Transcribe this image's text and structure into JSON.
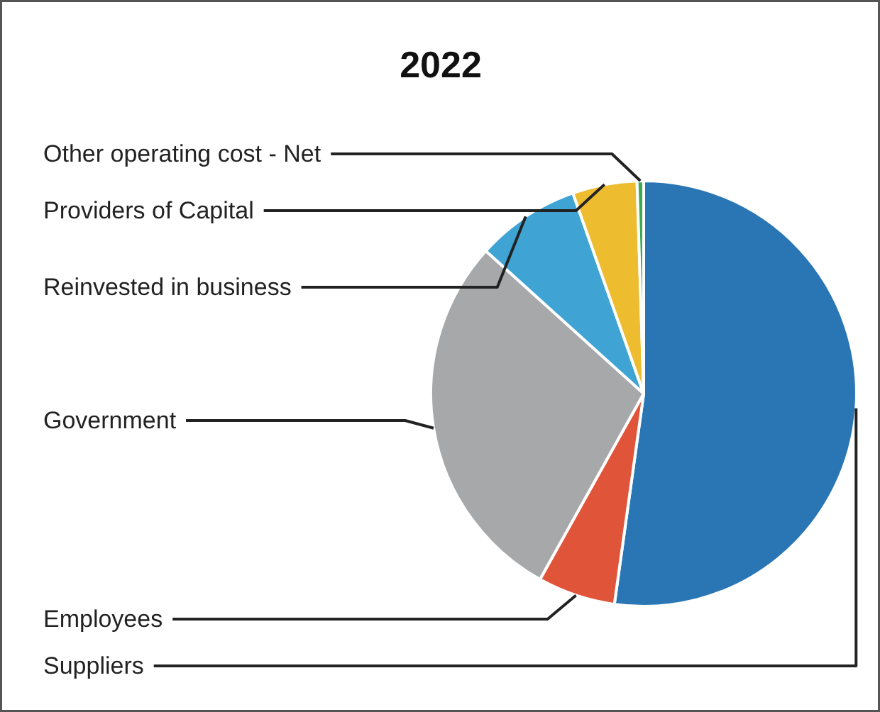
{
  "chart_data": {
    "type": "pie",
    "title": "2022",
    "categories": [
      "Suppliers",
      "Employees",
      "Government",
      "Reinvested in business",
      "Providers of Capital",
      "Other operating cost - Net"
    ],
    "values": [
      52.2,
      5.9,
      28.6,
      7.9,
      4.9,
      0.5
    ],
    "colors": [
      "#2a76b5",
      "#e0553a",
      "#a7a8aa",
      "#3fa4d4",
      "#eebc2f",
      "#3aaa4f"
    ]
  }
}
